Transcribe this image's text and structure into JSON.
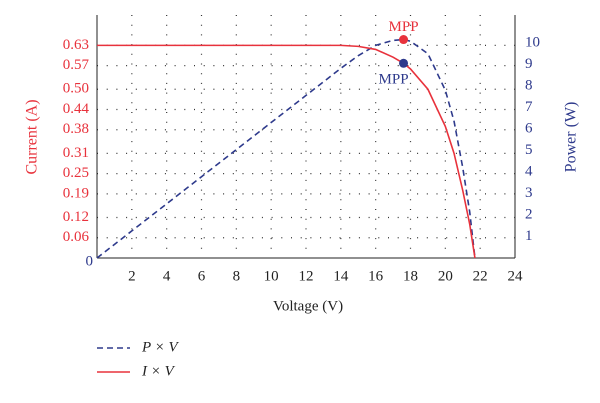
{
  "chart_data": {
    "type": "line",
    "xlabel": "Voltage (V)",
    "ylabel": "Current (A)",
    "y2label": "Power (W)",
    "x": [
      0,
      2,
      4,
      6,
      8,
      10,
      12,
      14,
      15,
      16,
      17,
      17.6,
      18,
      19,
      20,
      20.5,
      21,
      21.4,
      21.7
    ],
    "series": [
      {
        "name": "P × V",
        "color": "#2e3a8c",
        "dash": true,
        "axis": "y2",
        "values": [
          0,
          1.26,
          2.52,
          3.78,
          5.04,
          6.3,
          7.56,
          8.82,
          9.41,
          9.89,
          10.12,
          10.16,
          10.08,
          9.5,
          7.8,
          6.36,
          4.2,
          2.14,
          0
        ]
      },
      {
        "name": "I × V",
        "color": "#e8323c",
        "dash": false,
        "axis": "y",
        "values": [
          0.63,
          0.63,
          0.63,
          0.63,
          0.63,
          0.63,
          0.63,
          0.63,
          0.627,
          0.618,
          0.595,
          0.577,
          0.56,
          0.5,
          0.39,
          0.31,
          0.2,
          0.1,
          0
        ]
      }
    ],
    "annotations": [
      {
        "text": "MPP",
        "x": 17.6,
        "y": 10.16,
        "axis": "y2",
        "color": "#e8323c"
      },
      {
        "text": "MPP",
        "x": 17.6,
        "y": 0.577,
        "axis": "y",
        "color": "#2e3a8c"
      }
    ],
    "xlim": [
      0,
      24
    ],
    "xticks": [
      0,
      2,
      4,
      6,
      8,
      10,
      12,
      14,
      16,
      18,
      20,
      22,
      24
    ],
    "ylim": [
      0,
      0.72
    ],
    "yticks": [
      0.06,
      0.12,
      0.19,
      0.25,
      0.31,
      0.38,
      0.44,
      {
        "value": 0.5,
        "label": "0.50"
      },
      0.57,
      0.63
    ],
    "y2lim": [
      0,
      11.3
    ],
    "y2ticks": [
      1,
      2,
      3,
      4,
      5,
      6,
      7,
      8,
      9,
      10
    ],
    "ytick_color": "#e8323c",
    "y2tick_color": "#2e3a8c",
    "grid": true,
    "legend": "bottom-left"
  }
}
